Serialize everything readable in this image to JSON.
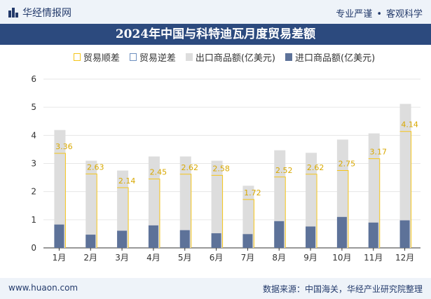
{
  "header": {
    "brand": "华经情报网",
    "tagline_left": "专业严谨",
    "tagline_sep": "•",
    "tagline_right": "客观科学"
  },
  "footer": {
    "url": "www.huaon.com",
    "source": "数据来源：中国海关，华经产业研究院整理"
  },
  "colors": {
    "exports": "#dddddd",
    "imports": "#5d7299",
    "surplus_line": "#f5c518",
    "title_bg": "#2c4a7e"
  },
  "chart_data": {
    "type": "bar",
    "title": "2024年中国与科特迪瓦月度贸易差额",
    "categories": [
      "1月",
      "2月",
      "3月",
      "4月",
      "5月",
      "6月",
      "7月",
      "8月",
      "9月",
      "10月",
      "11月",
      "12月"
    ],
    "legend": [
      "贸易顺差",
      "贸易逆差",
      "出口商品额(亿美元)",
      "进口商品额(亿美元)"
    ],
    "series": [
      {
        "name": "出口商品额(亿美元)",
        "values": [
          4.19,
          3.1,
          2.75,
          3.25,
          3.25,
          3.1,
          2.21,
          3.47,
          3.38,
          3.85,
          4.07,
          5.12
        ]
      },
      {
        "name": "进口商品额(亿美元)",
        "values": [
          0.83,
          0.47,
          0.61,
          0.8,
          0.63,
          0.52,
          0.49,
          0.95,
          0.76,
          1.1,
          0.9,
          0.98
        ]
      },
      {
        "name": "贸易顺差",
        "values": [
          3.36,
          2.63,
          2.14,
          2.45,
          2.62,
          2.58,
          1.72,
          2.52,
          2.62,
          2.75,
          3.17,
          4.14
        ]
      }
    ],
    "labels": [
      "3.36",
      "2.63",
      "2.14",
      "2.45",
      "2.62",
      "2.58",
      "1.72",
      "2.52",
      "2.62",
      "2.75",
      "3.17",
      "4.14"
    ],
    "ylim": [
      0,
      6
    ],
    "yticks": [
      0,
      1,
      2,
      3,
      4,
      5,
      6
    ],
    "xlabel": "",
    "ylabel": ""
  }
}
